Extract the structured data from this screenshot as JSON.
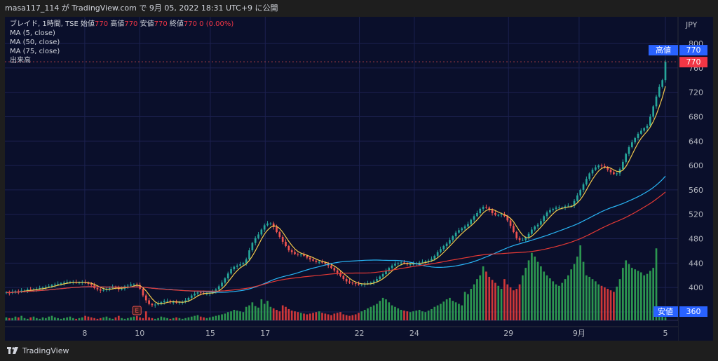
{
  "header": {
    "publish_info": "masa117_114 が TradingView.com で 9月 05, 2022 18:31 UTC+9 に公開"
  },
  "legend": {
    "symbol_line_prefix": "ブレイド, 1時間, TSE",
    "open_label": "始値",
    "open_value": "770",
    "high_label": "高値",
    "high_value": "770",
    "low_label": "安値",
    "low_value": "770",
    "close_label": "終値",
    "close_value": "770",
    "change": "0 (0.00%)",
    "ma5": "MA (5, close)",
    "ma50": "MA (50, close)",
    "ma75": "MA (75, close)",
    "volume": "出来高"
  },
  "price_axis": {
    "currency": "JPY",
    "ticks": [
      "800",
      "760",
      "720",
      "680",
      "640",
      "600",
      "560",
      "520",
      "480",
      "440",
      "400",
      "360"
    ],
    "high_tag": {
      "label": "高値",
      "value": "770"
    },
    "last_tag": {
      "value": "770"
    },
    "low_tag": {
      "label": "安値",
      "value": "360"
    }
  },
  "time_axis": {
    "ticks": [
      "8",
      "10",
      "15",
      "17",
      "22",
      "24",
      "29",
      "9月",
      "5"
    ]
  },
  "earnings_marker": "E",
  "footer": {
    "brand": "TradingView"
  },
  "colors": {
    "background": "#0a0f2b",
    "up": "#26a69a",
    "down": "#ef5350",
    "ma5": "#f2c94c",
    "ma50": "#29b6f6",
    "ma75": "#e53935",
    "grid": "#1c2150"
  },
  "chart_data": {
    "type": "candlestick",
    "y_axis_range": [
      360,
      800
    ],
    "close_series": [
      392,
      391,
      393,
      394,
      393,
      395,
      395,
      397,
      396,
      397,
      398,
      399,
      400,
      401,
      402,
      404,
      405,
      406,
      407,
      408,
      409,
      409,
      409,
      408,
      408,
      409,
      408,
      406,
      404,
      399,
      397,
      395,
      396,
      398,
      399,
      401,
      400,
      397,
      398,
      402,
      403,
      405,
      405,
      404,
      398,
      387,
      379,
      373,
      371,
      372,
      374,
      376,
      378,
      378,
      376,
      376,
      375,
      376,
      376,
      379,
      383,
      387,
      390,
      392,
      391,
      390,
      390,
      391,
      393,
      397,
      402,
      408,
      415,
      423,
      430,
      434,
      436,
      438,
      440,
      446,
      461,
      473,
      481,
      487,
      495,
      502,
      505,
      505,
      499,
      491,
      483,
      475,
      468,
      461,
      458,
      455,
      454,
      454,
      452,
      449,
      446,
      444,
      442,
      442,
      441,
      439,
      436,
      432,
      428,
      424,
      419,
      414,
      410,
      408,
      407,
      406,
      405,
      405,
      406,
      407,
      408,
      410,
      414,
      418,
      422,
      427,
      432,
      436,
      439,
      440,
      441,
      440,
      438,
      438,
      439,
      440,
      441,
      442,
      443,
      444,
      447,
      452,
      458,
      463,
      468,
      472,
      478,
      484,
      490,
      494,
      497,
      500,
      504,
      511,
      517,
      522,
      529,
      532,
      531,
      527,
      522,
      519,
      519,
      520,
      517,
      510,
      501,
      491,
      481,
      478,
      478,
      482,
      488,
      495,
      500,
      503,
      509,
      517,
      523,
      527,
      529,
      531,
      531,
      531,
      533,
      534,
      534,
      542,
      551,
      560,
      569,
      578,
      587,
      593,
      597,
      600,
      599,
      597,
      593,
      589,
      586,
      587,
      594,
      606,
      619,
      630,
      638,
      645,
      652,
      657,
      661,
      665,
      680,
      697,
      713,
      729,
      740,
      770
    ],
    "volume_series": [
      4,
      3,
      3,
      5,
      4,
      6,
      3,
      2,
      4,
      5,
      3,
      2,
      4,
      3,
      5,
      6,
      4,
      3,
      2,
      3,
      4,
      5,
      3,
      2,
      3,
      4,
      6,
      5,
      4,
      3,
      2,
      3,
      4,
      5,
      3,
      2,
      4,
      6,
      3,
      2,
      3,
      4,
      5,
      6,
      4,
      3,
      12,
      4,
      3,
      2,
      3,
      5,
      4,
      3,
      2,
      3,
      4,
      3,
      2,
      3,
      4,
      5,
      6,
      7,
      5,
      4,
      3,
      4,
      5,
      6,
      7,
      8,
      9,
      11,
      12,
      14,
      13,
      12,
      11,
      18,
      20,
      24,
      19,
      17,
      28,
      22,
      26,
      18,
      16,
      14,
      12,
      20,
      18,
      15,
      13,
      12,
      11,
      10,
      9,
      8,
      9,
      10,
      11,
      12,
      10,
      9,
      8,
      7,
      9,
      10,
      11,
      8,
      7,
      6,
      7,
      8,
      10,
      12,
      14,
      16,
      18,
      20,
      22,
      26,
      30,
      28,
      24,
      20,
      18,
      16,
      14,
      13,
      12,
      11,
      12,
      13,
      14,
      12,
      11,
      13,
      15,
      18,
      20,
      22,
      25,
      28,
      30,
      26,
      24,
      22,
      20,
      38,
      35,
      42,
      48,
      55,
      60,
      72,
      65,
      58,
      54,
      50,
      46,
      42,
      55,
      48,
      44,
      40,
      42,
      48,
      60,
      70,
      80,
      90,
      85,
      78,
      72,
      65,
      60,
      56,
      52,
      48,
      46,
      50,
      55,
      60,
      68,
      75,
      85,
      100,
      78,
      60,
      58,
      55,
      52,
      48,
      46,
      44,
      42,
      40,
      38,
      45,
      55,
      70,
      80,
      75,
      70,
      68,
      66,
      64,
      60,
      62,
      66,
      70,
      96,
      8,
      5,
      4
    ]
  }
}
